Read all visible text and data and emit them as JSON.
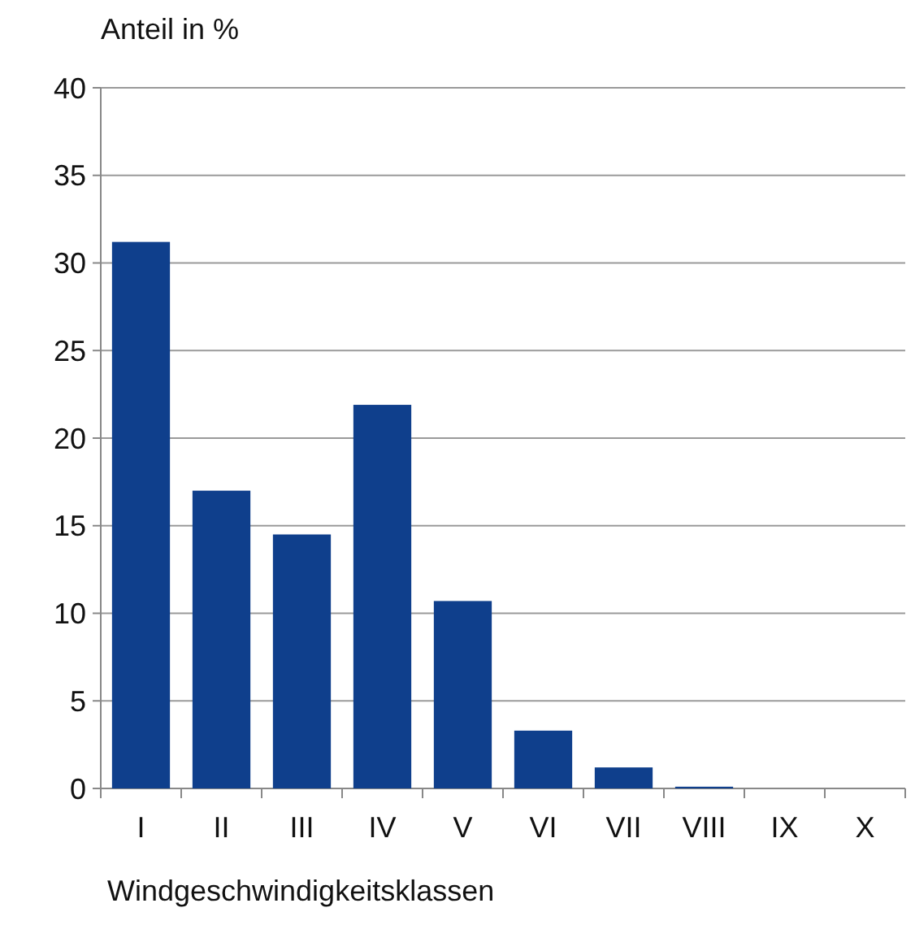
{
  "chart_data": {
    "type": "bar",
    "ylabel": "Anteil in %",
    "xlabel": "Windgeschwindigkeitsklassen",
    "categories": [
      "I",
      "II",
      "III",
      "IV",
      "V",
      "VI",
      "VII",
      "VIII",
      "IX",
      "X"
    ],
    "values": [
      31.2,
      17.0,
      14.5,
      21.9,
      10.7,
      3.3,
      1.2,
      0.1,
      0,
      0
    ],
    "color": "#0f3f8c",
    "ylim": [
      0,
      40
    ],
    "yticks": [
      0,
      5,
      10,
      15,
      20,
      25,
      30,
      35,
      40
    ],
    "grid": "y"
  }
}
